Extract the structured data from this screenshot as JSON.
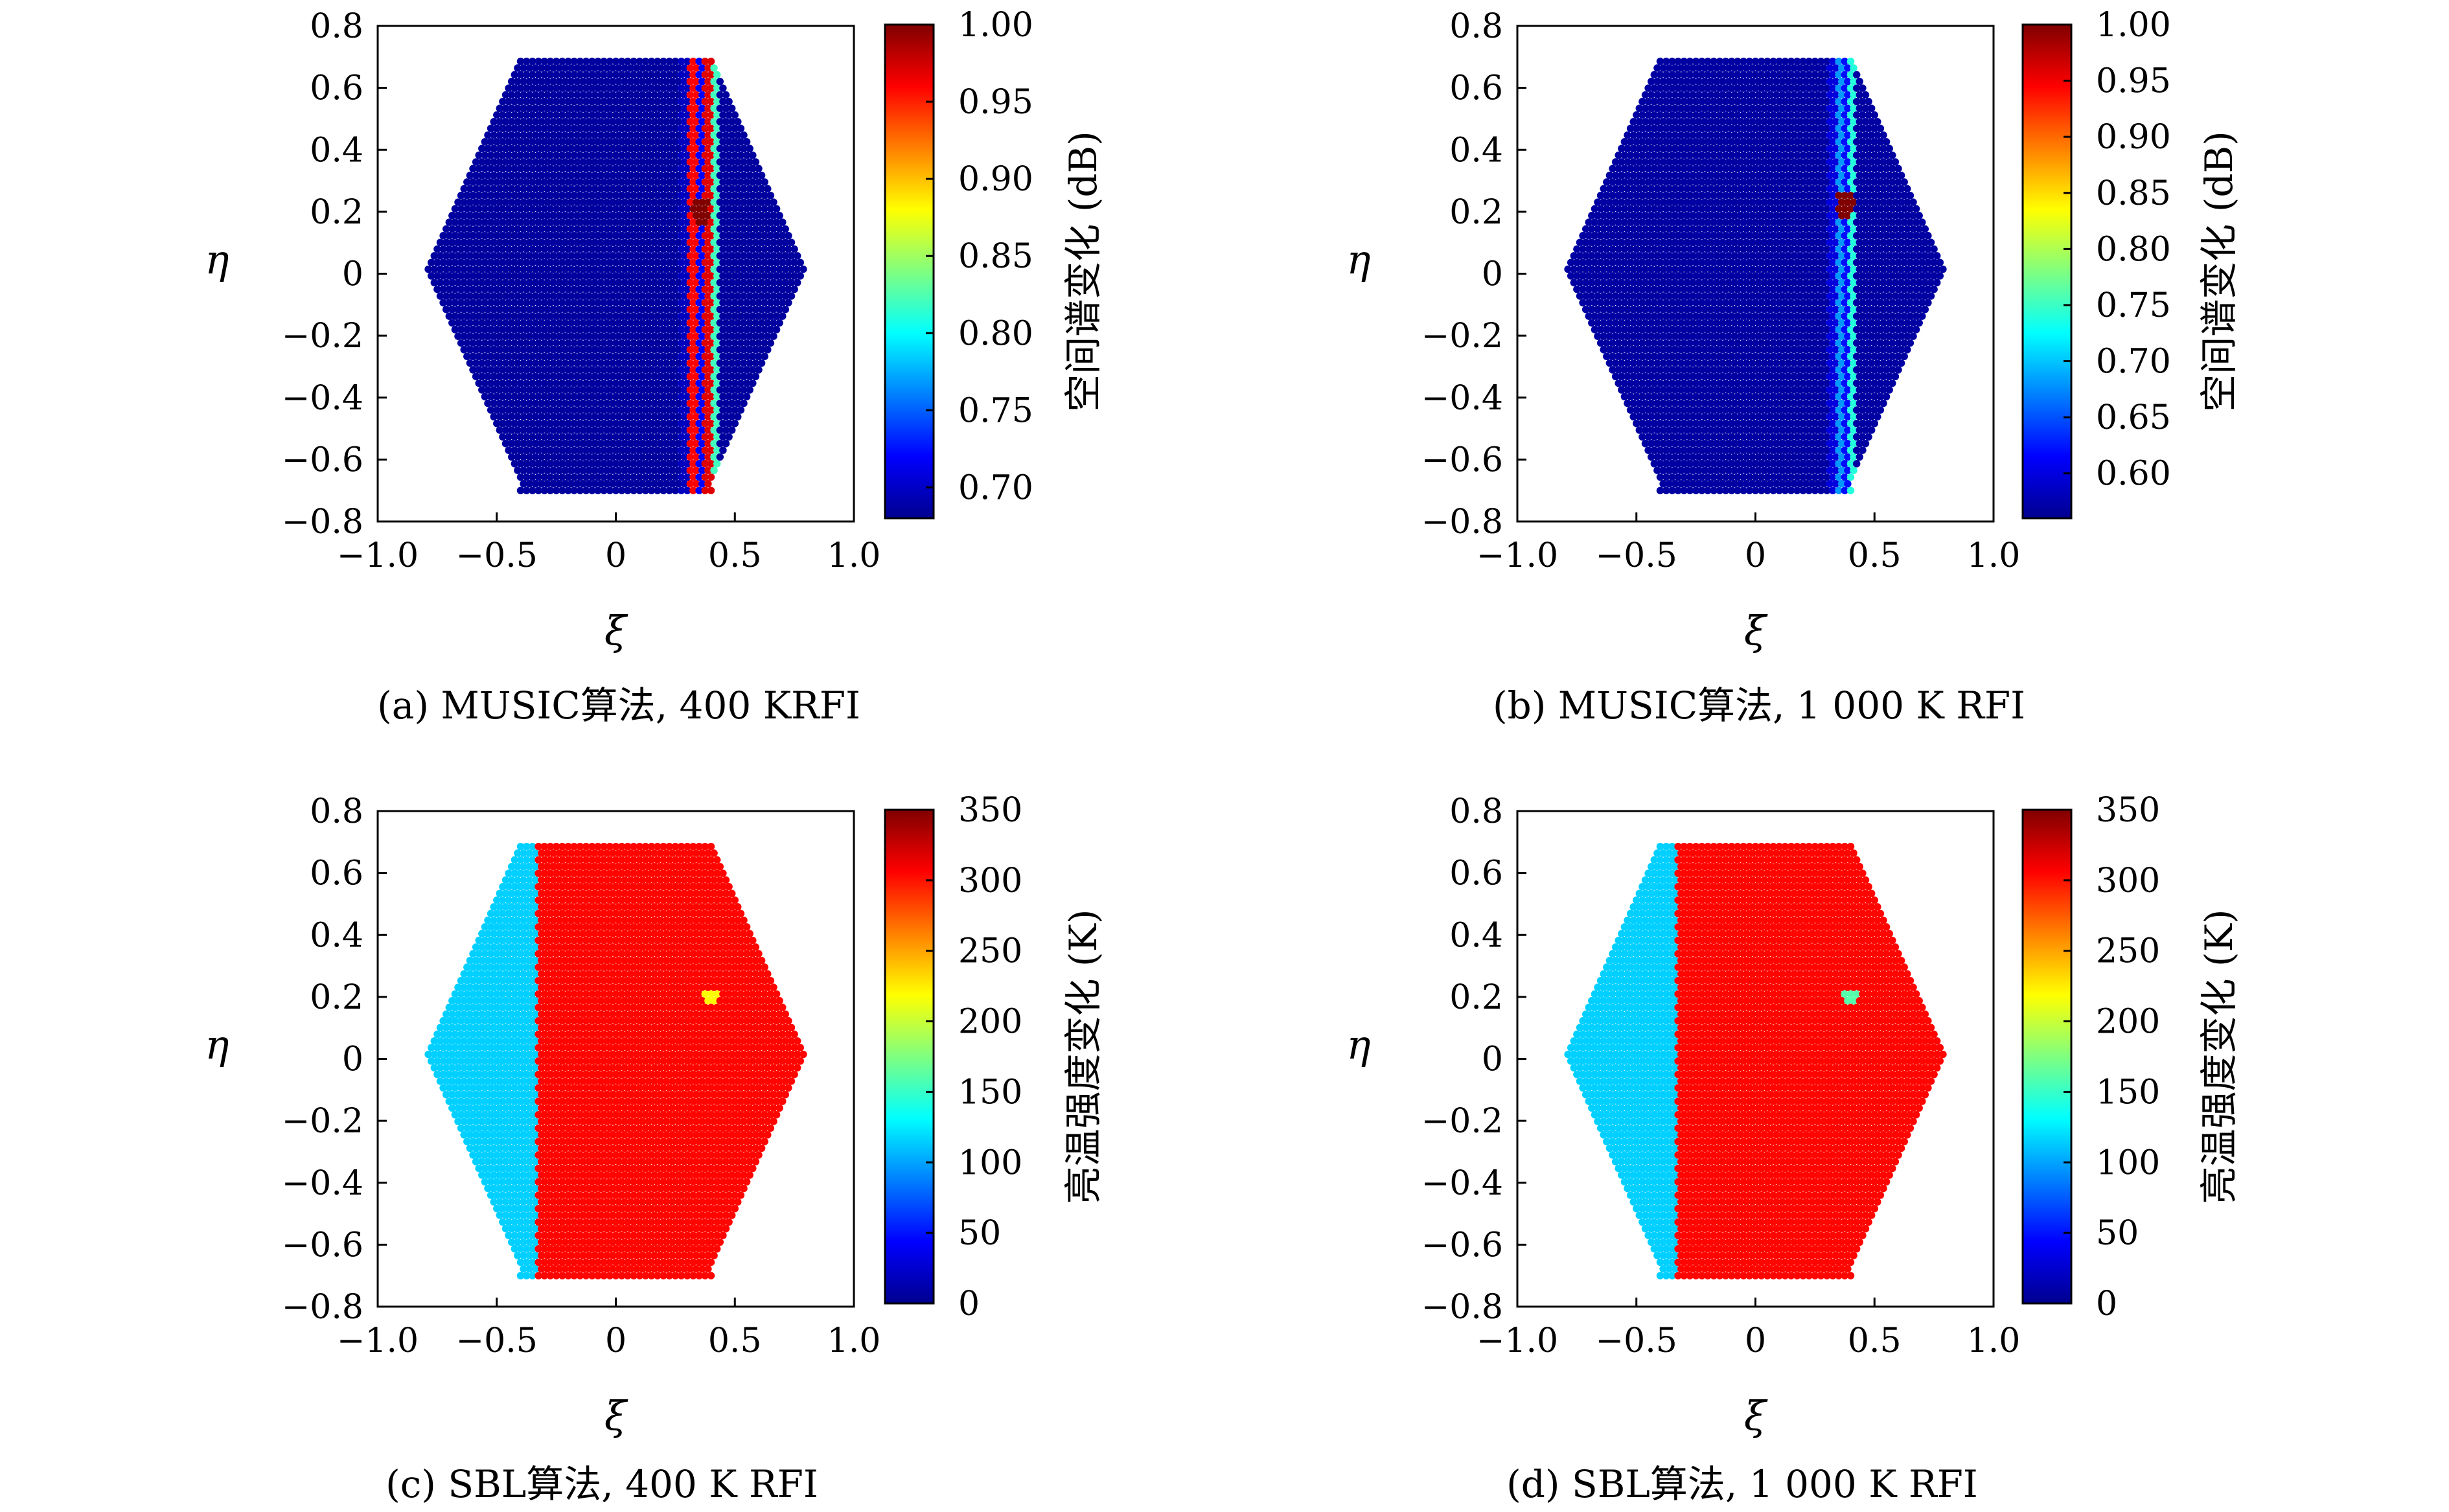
{
  "chart_data": [
    {
      "type": "heatmap",
      "panel": "a",
      "caption": "(a) MUSIC算法, 400 KRFI",
      "xlabel": "ξ",
      "ylabel": "η",
      "xlim": [
        -1.0,
        1.0
      ],
      "ylim": [
        -0.8,
        0.8
      ],
      "xticks": [
        "−1.0",
        "−0.5",
        "0",
        "0.5",
        "1.0"
      ],
      "yticks": [
        "0.8",
        "0.6",
        "0.4",
        "0.2",
        "0",
        "−0.2",
        "−0.4",
        "−0.6",
        "−0.8"
      ],
      "domain": "hexagon",
      "colorbar": {
        "label": "空间谱变化 (dB)",
        "range": [
          0.68,
          1.0
        ],
        "ticks": [
          "1.00",
          "0.95",
          "0.90",
          "0.85",
          "0.80",
          "0.75",
          "0.70"
        ],
        "tick_values": [
          1.0,
          0.95,
          0.9,
          0.85,
          0.8,
          0.75,
          0.7
        ],
        "colormap": "jet"
      },
      "field": {
        "background": 0.69,
        "bands": [
          {
            "xmin": 0.27,
            "xmax": 0.31,
            "value": 0.7
          },
          {
            "xmin": 0.31,
            "xmax": 0.35,
            "value": 0.96
          },
          {
            "xmin": 0.35,
            "xmax": 0.37,
            "value": 0.72
          },
          {
            "xmin": 0.37,
            "xmax": 0.41,
            "value": 0.97
          },
          {
            "xmin": 0.41,
            "xmax": 0.43,
            "value": 0.82
          }
        ],
        "hotspot": {
          "x": 0.36,
          "y": 0.2,
          "value": 1.0
        }
      }
    },
    {
      "type": "heatmap",
      "panel": "b",
      "caption": "(b) MUSIC算法, 1 000 K RFI",
      "xlabel": "ξ",
      "ylabel": "η",
      "xlim": [
        -1.0,
        1.0
      ],
      "ylim": [
        -0.8,
        0.8
      ],
      "xticks": [
        "−1.0",
        "−0.5",
        "0",
        "0.5",
        "1.0"
      ],
      "yticks": [
        "0.8",
        "0.6",
        "0.4",
        "0.2",
        "0",
        "−0.2",
        "−0.4",
        "−0.6",
        "−0.8"
      ],
      "domain": "hexagon",
      "colorbar": {
        "label": "空间谱变化 (dB)",
        "range": [
          0.56,
          1.0
        ],
        "ticks": [
          "1.00",
          "0.95",
          "0.90",
          "0.85",
          "0.80",
          "0.75",
          "0.70",
          "0.65",
          "0.60"
        ],
        "tick_values": [
          1.0,
          0.95,
          0.9,
          0.85,
          0.8,
          0.75,
          0.7,
          0.65,
          0.6
        ],
        "colormap": "jet"
      },
      "field": {
        "background": 0.575,
        "bands": [
          {
            "xmin": 0.31,
            "xmax": 0.34,
            "value": 0.6
          },
          {
            "xmin": 0.34,
            "xmax": 0.37,
            "value": 0.68
          },
          {
            "xmin": 0.37,
            "xmax": 0.39,
            "value": 0.62
          },
          {
            "xmin": 0.39,
            "xmax": 0.42,
            "value": 0.74
          }
        ],
        "hotspot": {
          "x": 0.38,
          "y": 0.22,
          "value": 1.0
        }
      }
    },
    {
      "type": "heatmap",
      "panel": "c",
      "caption": "(c) SBL算法, 400 K RFI",
      "xlabel": "ξ",
      "ylabel": "η",
      "xlim": [
        -1.0,
        1.0
      ],
      "ylim": [
        -0.8,
        0.8
      ],
      "xticks": [
        "−1.0",
        "−0.5",
        "0",
        "0.5",
        "1.0"
      ],
      "yticks": [
        "0.8",
        "0.6",
        "0.4",
        "0.2",
        "0",
        "−0.2",
        "−0.4",
        "−0.6",
        "−0.8"
      ],
      "domain": "hexagon",
      "colorbar": {
        "label": "亮温强度变化 (K)",
        "range": [
          0,
          350
        ],
        "ticks": [
          "350",
          "300",
          "250",
          "200",
          "150",
          "100",
          "50",
          "0"
        ],
        "tick_values": [
          350,
          300,
          250,
          200,
          150,
          100,
          50,
          0
        ],
        "colormap": "jet"
      },
      "field": {
        "split_x": -0.33,
        "left_value": 115,
        "right_value": 305,
        "hotspot": {
          "x": 0.4,
          "y": 0.2,
          "value": 220
        }
      }
    },
    {
      "type": "heatmap",
      "panel": "d",
      "caption": "(d) SBL算法, 1 000 K RFI",
      "xlabel": "ξ",
      "ylabel": "η",
      "xlim": [
        -1.0,
        1.0
      ],
      "ylim": [
        -0.8,
        0.8
      ],
      "xticks": [
        "−1.0",
        "−0.5",
        "0",
        "0.5",
        "1.0"
      ],
      "yticks": [
        "0.8",
        "0.6",
        "0.4",
        "0.2",
        "0",
        "−0.2",
        "−0.4",
        "−0.6",
        "−0.8"
      ],
      "domain": "hexagon",
      "colorbar": {
        "label": "亮温强度变化 (K)",
        "range": [
          0,
          350
        ],
        "ticks": [
          "350",
          "300",
          "250",
          "200",
          "150",
          "100",
          "50",
          "0"
        ],
        "tick_values": [
          350,
          300,
          250,
          200,
          150,
          100,
          50,
          0
        ],
        "colormap": "jet"
      },
      "field": {
        "split_x": -0.33,
        "left_value": 115,
        "right_value": 305,
        "hotspot": {
          "x": 0.4,
          "y": 0.2,
          "value": 160
        }
      }
    }
  ]
}
